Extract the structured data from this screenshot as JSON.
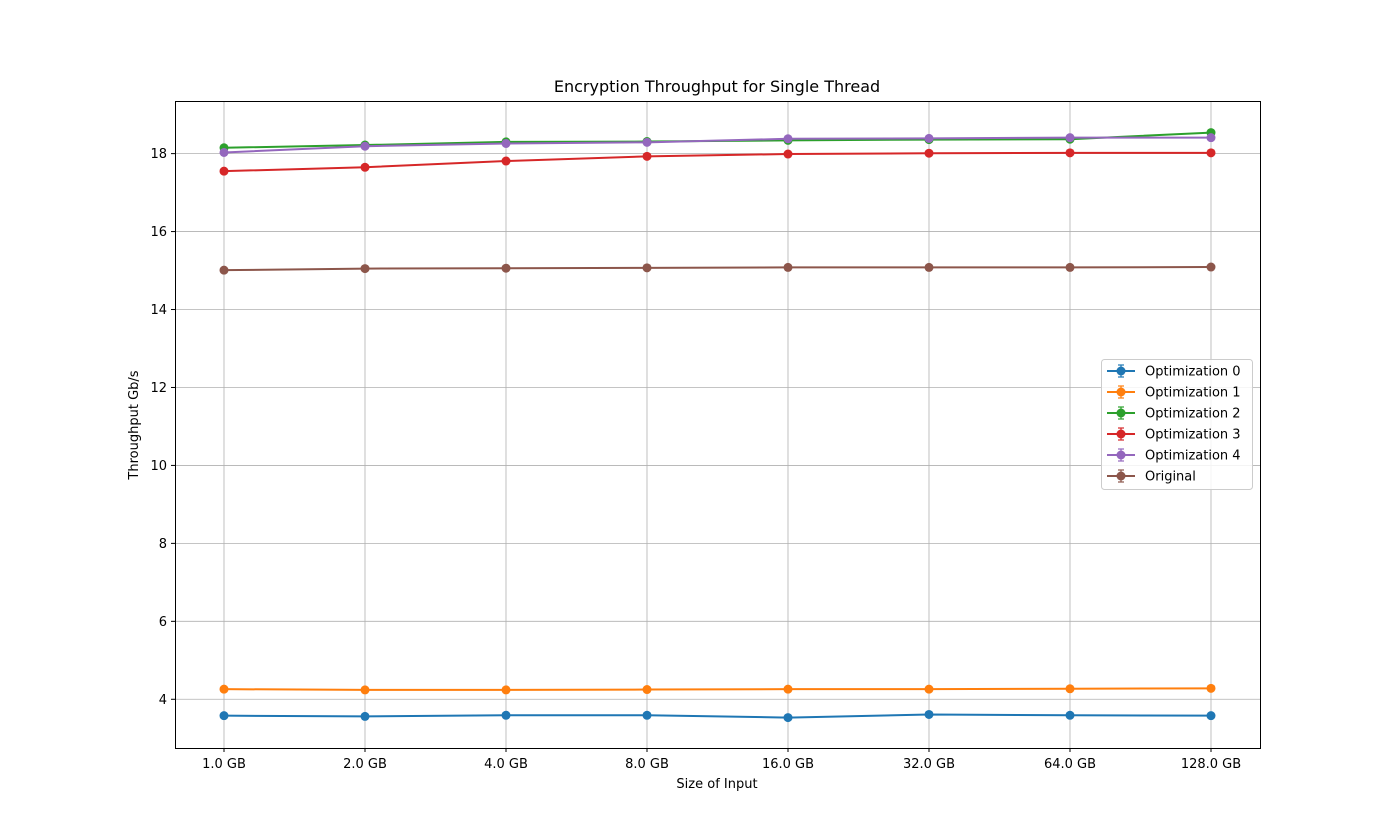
{
  "chart_data": {
    "type": "line",
    "title": "Encryption Throughput for Single Thread",
    "xlabel": "Size of Input",
    "ylabel": "Throughput Gb/s",
    "categories": [
      "1.0 GB",
      "2.0 GB",
      "4.0 GB",
      "8.0 GB",
      "16.0 GB",
      "32.0 GB",
      "64.0 GB",
      "128.0 GB"
    ],
    "ylim": [
      2.75,
      19.35
    ],
    "yticks": [
      4,
      6,
      8,
      10,
      12,
      14,
      16,
      18
    ],
    "grid": true,
    "legend_position": "center-right",
    "series": [
      {
        "name": "Optimization 0",
        "color": "#1f77b4",
        "values": [
          3.58,
          3.56,
          3.59,
          3.59,
          3.53,
          3.61,
          3.59,
          3.58
        ]
      },
      {
        "name": "Optimization 1",
        "color": "#ff7f0e",
        "values": [
          4.26,
          4.24,
          4.24,
          4.25,
          4.26,
          4.26,
          4.27,
          4.28
        ]
      },
      {
        "name": "Optimization 2",
        "color": "#2ca02c",
        "values": [
          18.15,
          18.22,
          18.3,
          18.31,
          18.34,
          18.36,
          18.37,
          18.54
        ]
      },
      {
        "name": "Optimization 3",
        "color": "#d62728",
        "values": [
          17.55,
          17.65,
          17.81,
          17.93,
          17.99,
          18.01,
          18.02,
          18.02
        ]
      },
      {
        "name": "Optimization 4",
        "color": "#9467bd",
        "values": [
          18.03,
          18.19,
          18.26,
          18.29,
          18.38,
          18.39,
          18.41,
          18.41
        ]
      },
      {
        "name": "Original",
        "color": "#8c564b",
        "values": [
          15.01,
          15.05,
          15.06,
          15.07,
          15.08,
          15.08,
          15.08,
          15.09
        ]
      }
    ]
  }
}
